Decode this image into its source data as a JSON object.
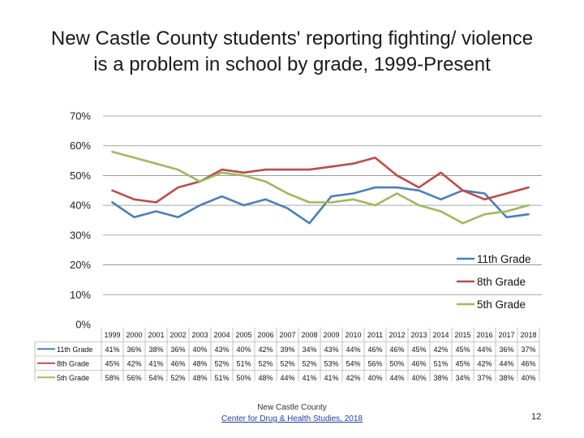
{
  "slide": {
    "title_line1": "New Castle County students' reporting fighting/ violence",
    "title_line2": "is a problem in school by grade, 1999-Present",
    "footer_line1": "New Castle County",
    "footer_link": "Center for Drug & Health Studies, 2018",
    "page_number": "12"
  },
  "chart_data": {
    "type": "line",
    "title": "New Castle County students' reporting fighting/ violence is a problem in school by grade, 1999-Present",
    "categories": [
      "1999",
      "2000",
      "2001",
      "2002",
      "2003",
      "2004",
      "2005",
      "2006",
      "2007",
      "2008",
      "2009",
      "2010",
      "2011",
      "2012",
      "2013",
      "2014",
      "2015",
      "2016",
      "2017",
      "2018"
    ],
    "ylim": [
      0,
      70
    ],
    "yticks": [
      0,
      10,
      20,
      30,
      40,
      50,
      60,
      70
    ],
    "ytick_labels": [
      "0%",
      "10%",
      "20%",
      "30%",
      "40%",
      "50%",
      "60%",
      "70%"
    ],
    "grid": true,
    "legend_position": "right",
    "series": [
      {
        "name": "11th Grade",
        "color": "#4a7ebb",
        "values": [
          41,
          36,
          38,
          36,
          40,
          43,
          40,
          42,
          39,
          34,
          43,
          44,
          46,
          46,
          45,
          42,
          45,
          44,
          36,
          37
        ],
        "labels": [
          "41%",
          "36%",
          "38%",
          "36%",
          "40%",
          "43%",
          "40%",
          "42%",
          "39%",
          "34%",
          "43%",
          "44%",
          "46%",
          "46%",
          "45%",
          "42%",
          "45%",
          "44%",
          "36%",
          "37%"
        ]
      },
      {
        "name": "8th Grade",
        "color": "#be4b48",
        "values": [
          45,
          42,
          41,
          46,
          48,
          52,
          51,
          52,
          52,
          52,
          53,
          54,
          56,
          50,
          46,
          51,
          45,
          42,
          44,
          46
        ],
        "labels": [
          "45%",
          "42%",
          "41%",
          "46%",
          "48%",
          "52%",
          "51%",
          "52%",
          "52%",
          "52%",
          "53%",
          "54%",
          "56%",
          "50%",
          "46%",
          "51%",
          "45%",
          "42%",
          "44%",
          "46%"
        ]
      },
      {
        "name": "5th Grade",
        "color": "#9bbb59",
        "values": [
          58,
          56,
          54,
          52,
          48,
          51,
          50,
          48,
          44,
          41,
          41,
          42,
          40,
          44,
          40,
          38,
          34,
          37,
          38,
          40
        ],
        "labels": [
          "58%",
          "56%",
          "54%",
          "52%",
          "48%",
          "51%",
          "50%",
          "48%",
          "44%",
          "41%",
          "41%",
          "42%",
          "40%",
          "44%",
          "40%",
          "38%",
          "34%",
          "37%",
          "38%",
          "40%"
        ]
      }
    ]
  }
}
